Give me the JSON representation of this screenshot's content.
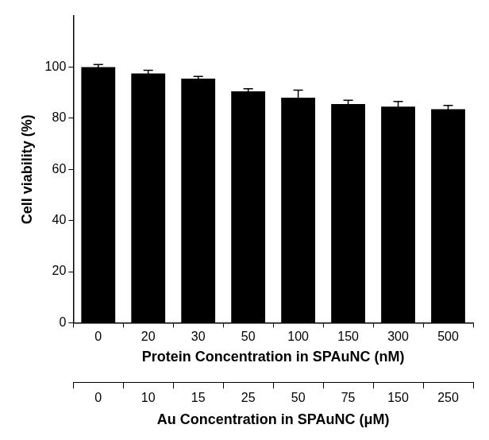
{
  "chart_data": {
    "type": "bar",
    "categories": [
      0,
      20,
      30,
      50,
      100,
      150,
      300,
      500
    ],
    "values": [
      100,
      97.5,
      95.5,
      90.5,
      88,
      85.5,
      84.5,
      83.5
    ],
    "errors": [
      1,
      1.2,
      0.8,
      1,
      3,
      1.5,
      2,
      1.5
    ],
    "color": "#000000",
    "x_label": "Protein Concentration in SPAuNC (nM)",
    "y_label": "Cell viability (%)",
    "secondary_x": {
      "label": "Au Concentration in SPAuNC (μM)",
      "categories": [
        0,
        10,
        15,
        25,
        50,
        75,
        150,
        250
      ]
    },
    "ylim": [
      0,
      120
    ],
    "yticks": [
      0,
      20,
      40,
      60,
      80,
      100
    ],
    "grid": false
  }
}
